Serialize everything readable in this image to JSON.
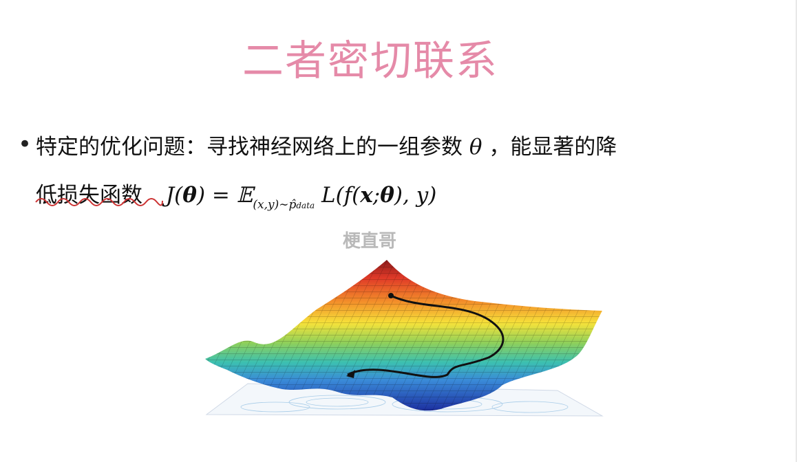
{
  "slide": {
    "title": "二者密切联系",
    "bullet_symbol": "•",
    "line1": {
      "text": "特定的优化问题：寻找神经网络上的一组参数",
      "theta": "θ",
      "text_after": "，能显著的降"
    },
    "line2": {
      "text_before": "低",
      "underlined": "损失函数",
      "formula_J": "J(",
      "formula_theta": "θ",
      "formula_eq": ") = ",
      "formula_E": "𝔼",
      "formula_sub": "(x,y)∼p̂",
      "formula_sub2": "data",
      "formula_L": " L(f(",
      "formula_x": "x",
      "formula_semicolon": ";",
      "formula_theta2": "θ",
      "formula_end": "), y)"
    },
    "watermark": "梗直哥"
  },
  "colors": {
    "title": "#e58aa8",
    "text": "#111111",
    "underline": "#cc3333",
    "watermark": "#b9b9b9"
  },
  "figure": {
    "description_icon": "loss-surface-3d-plot"
  }
}
